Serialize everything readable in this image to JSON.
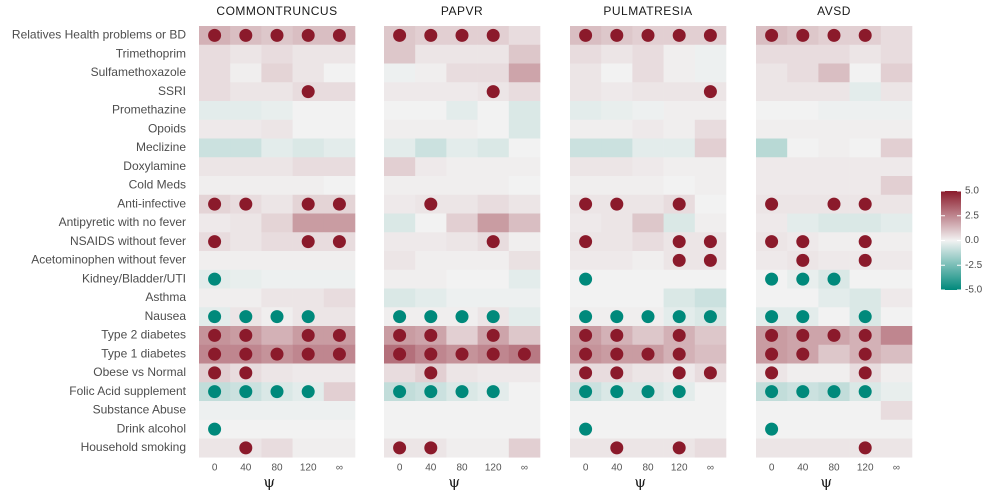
{
  "colorbar": {
    "lim": [
      -5,
      5
    ],
    "ticks": [
      {
        "value": 5,
        "label": "5.0"
      },
      {
        "value": 2.5,
        "label": "2.5"
      },
      {
        "value": 0,
        "label": "0.0"
      },
      {
        "value": -2.5,
        "label": "-2.5"
      },
      {
        "value": -5,
        "label": "-5.0"
      }
    ],
    "colors": {
      "low": "#00897b",
      "mid": "#f2f2f2",
      "high": "#8b1a2b"
    }
  },
  "dot_colors": {
    "positive": "#8b1a2b",
    "negative": "#00897b"
  },
  "chart_data": [
    {
      "type": "heatmap",
      "title": "COMMONTRUNCUS",
      "x": [
        "0",
        "40",
        "80",
        "120",
        "∞"
      ],
      "xlabel": "ψ",
      "y": [
        "Relatives Health problems or BD",
        "Trimethoprim",
        "Sulfamethoxazole",
        "SSRI",
        "Promethazine",
        "Opoids",
        "Meclizine",
        "Doxylamine",
        "Cold Meds",
        "Anti-infective",
        "Antipyretic with no fever",
        "NSAIDS without fever",
        "Acetominophen without fever",
        "Kidney/Bladder/UTI",
        "Asthma",
        "Nausea",
        "Type 2 diabetes",
        "Type 1 diabetes",
        "Obese vs Normal",
        "Folic Acid supplement",
        "Substance Abuse",
        "Drink alcohol",
        "Household smoking"
      ],
      "values": [
        [
          1.5,
          1.2,
          1.0,
          1.2,
          1.2
        ],
        [
          0.5,
          0.3,
          0.5,
          0.3,
          0.3
        ],
        [
          0.5,
          0.1,
          0.7,
          0.3,
          0.0
        ],
        [
          0.5,
          0.3,
          0.3,
          0.5,
          0.5
        ],
        [
          -0.3,
          -0.3,
          -0.2,
          0.0,
          0.0
        ],
        [
          0.2,
          0.2,
          0.3,
          0.0,
          0.0
        ],
        [
          -0.8,
          -0.8,
          -0.3,
          -0.5,
          -0.3
        ],
        [
          0.3,
          0.3,
          0.3,
          0.5,
          0.5
        ],
        [
          0.1,
          0.1,
          0.1,
          0.1,
          0.0
        ],
        [
          0.7,
          0.5,
          0.3,
          0.7,
          0.7
        ],
        [
          0.2,
          0.3,
          0.7,
          2.0,
          2.0
        ],
        [
          0.5,
          0.3,
          0.5,
          0.5,
          0.5
        ],
        [
          0.1,
          0.1,
          0.1,
          0.1,
          0.1
        ],
        [
          -0.3,
          -0.2,
          -0.1,
          -0.1,
          -0.1
        ],
        [
          0.1,
          0.1,
          0.3,
          0.3,
          0.5
        ],
        [
          -0.3,
          0.3,
          0.1,
          0.3,
          0.3
        ],
        [
          2.2,
          2.0,
          1.5,
          2.0,
          2.0
        ],
        [
          2.5,
          2.5,
          2.2,
          2.5,
          2.5
        ],
        [
          0.8,
          0.5,
          0.3,
          0.2,
          0.2
        ],
        [
          -1.0,
          -0.8,
          -0.5,
          -0.3,
          0.8
        ],
        [
          -0.1,
          -0.1,
          -0.1,
          -0.1,
          -0.1
        ],
        [
          0.0,
          0.0,
          0.0,
          0.0,
          0.0
        ],
        [
          0.3,
          0.3,
          0.5,
          0.1,
          0.1
        ]
      ],
      "signif": [
        [
          1,
          1,
          1,
          1,
          1
        ],
        [
          0,
          0,
          0,
          0,
          0
        ],
        [
          0,
          0,
          0,
          0,
          0
        ],
        [
          0,
          0,
          0,
          1,
          0
        ],
        [
          0,
          0,
          0,
          0,
          0
        ],
        [
          0,
          0,
          0,
          0,
          0
        ],
        [
          0,
          0,
          0,
          0,
          0
        ],
        [
          0,
          0,
          0,
          0,
          0
        ],
        [
          0,
          0,
          0,
          0,
          0
        ],
        [
          1,
          1,
          0,
          1,
          1
        ],
        [
          0,
          0,
          0,
          0,
          0
        ],
        [
          1,
          0,
          0,
          1,
          1
        ],
        [
          0,
          0,
          0,
          0,
          0
        ],
        [
          -1,
          0,
          0,
          0,
          0
        ],
        [
          0,
          0,
          0,
          0,
          0
        ],
        [
          -1,
          -1,
          -1,
          -1,
          0
        ],
        [
          1,
          1,
          0,
          1,
          1
        ],
        [
          1,
          1,
          1,
          1,
          1
        ],
        [
          1,
          1,
          0,
          0,
          0
        ],
        [
          -1,
          -1,
          -1,
          -1,
          0
        ],
        [
          0,
          0,
          0,
          0,
          0
        ],
        [
          -1,
          0,
          0,
          0,
          0
        ],
        [
          0,
          1,
          0,
          0,
          0
        ]
      ]
    },
    {
      "type": "heatmap",
      "title": "PAPVR",
      "x": [
        "0",
        "40",
        "80",
        "120",
        "∞"
      ],
      "xlabel": "ψ",
      "values": [
        [
          1.0,
          0.8,
          0.8,
          0.8,
          0.5
        ],
        [
          1.0,
          0.3,
          0.3,
          0.3,
          1.0
        ],
        [
          -0.1,
          0.1,
          0.5,
          0.5,
          1.8
        ],
        [
          0.2,
          0.2,
          0.2,
          0.3,
          0.5
        ],
        [
          0.0,
          0.0,
          -0.3,
          0.0,
          -0.5
        ],
        [
          0.1,
          0.1,
          0.1,
          0.0,
          -0.5
        ],
        [
          -0.3,
          -0.8,
          -0.3,
          -0.5,
          0.0
        ],
        [
          0.8,
          0.2,
          0.1,
          0.1,
          0.1
        ],
        [
          0.1,
          0.1,
          0.1,
          0.1,
          0.0
        ],
        [
          0.2,
          0.3,
          0.3,
          0.5,
          0.3
        ],
        [
          -0.5,
          0.0,
          0.8,
          2.0,
          1.2
        ],
        [
          0.2,
          0.2,
          0.3,
          0.5,
          0.1
        ],
        [
          0.3,
          0.1,
          0.1,
          0.1,
          0.4
        ],
        [
          0.1,
          0.1,
          0.0,
          0.0,
          -0.3
        ],
        [
          -0.5,
          -0.3,
          -0.1,
          -0.1,
          -0.1
        ],
        [
          0.1,
          0.1,
          0.1,
          0.3,
          -0.3
        ],
        [
          2.0,
          1.8,
          0.8,
          1.8,
          1.0
        ],
        [
          3.0,
          2.5,
          2.2,
          2.5,
          2.8
        ],
        [
          0.5,
          0.8,
          0.3,
          0.2,
          0.2
        ],
        [
          -1.0,
          -0.8,
          -0.5,
          -0.3,
          0.0
        ],
        [
          0.0,
          0.0,
          0.0,
          0.0,
          0.0
        ],
        [
          0.0,
          0.0,
          0.0,
          0.0,
          0.0
        ],
        [
          0.3,
          0.3,
          0.1,
          0.1,
          0.8
        ]
      ],
      "signif": [
        [
          1,
          1,
          1,
          1,
          0
        ],
        [
          0,
          0,
          0,
          0,
          0
        ],
        [
          0,
          0,
          0,
          0,
          0
        ],
        [
          0,
          0,
          0,
          1,
          0
        ],
        [
          0,
          0,
          0,
          0,
          0
        ],
        [
          0,
          0,
          0,
          0,
          0
        ],
        [
          0,
          0,
          0,
          0,
          0
        ],
        [
          0,
          0,
          0,
          0,
          0
        ],
        [
          0,
          0,
          0,
          0,
          0
        ],
        [
          0,
          1,
          0,
          0,
          0
        ],
        [
          0,
          0,
          0,
          0,
          0
        ],
        [
          0,
          0,
          0,
          1,
          0
        ],
        [
          0,
          0,
          0,
          0,
          0
        ],
        [
          0,
          0,
          0,
          0,
          0
        ],
        [
          0,
          0,
          0,
          0,
          0
        ],
        [
          -1,
          -1,
          -1,
          -1,
          0
        ],
        [
          1,
          1,
          0,
          1,
          0
        ],
        [
          1,
          1,
          1,
          1,
          1
        ],
        [
          0,
          1,
          0,
          0,
          0
        ],
        [
          -1,
          -1,
          -1,
          -1,
          0
        ],
        [
          0,
          0,
          0,
          0,
          0
        ],
        [
          0,
          0,
          0,
          0,
          0
        ],
        [
          1,
          1,
          0,
          0,
          0
        ]
      ]
    },
    {
      "type": "heatmap",
      "title": "PULMATRESIA",
      "x": [
        "0",
        "40",
        "80",
        "120",
        "∞"
      ],
      "xlabel": "ψ",
      "values": [
        [
          1.2,
          1.0,
          0.8,
          0.8,
          0.8
        ],
        [
          0.5,
          0.3,
          0.5,
          0.1,
          -0.1
        ],
        [
          0.3,
          0.0,
          0.5,
          0.1,
          -0.1
        ],
        [
          0.3,
          0.2,
          0.3,
          0.3,
          0.3
        ],
        [
          -0.3,
          -0.2,
          -0.1,
          0.1,
          0.1
        ],
        [
          0.1,
          0.1,
          0.2,
          0.1,
          0.5
        ],
        [
          -0.8,
          -0.8,
          -0.3,
          -0.3,
          0.8
        ],
        [
          0.3,
          0.3,
          0.2,
          0.1,
          0.1
        ],
        [
          0.1,
          0.1,
          0.1,
          0.0,
          0.1
        ],
        [
          0.3,
          0.3,
          0.3,
          0.5,
          0.0
        ],
        [
          0.2,
          0.3,
          1.0,
          -0.5,
          0.1
        ],
        [
          0.3,
          0.3,
          0.5,
          0.3,
          0.3
        ],
        [
          0.2,
          0.2,
          0.1,
          0.3,
          0.3
        ],
        [
          0.0,
          0.0,
          0.0,
          0.0,
          0.0
        ],
        [
          0.0,
          0.0,
          0.0,
          -0.5,
          -0.8
        ],
        [
          0.1,
          0.1,
          0.1,
          -0.3,
          -0.5
        ],
        [
          2.0,
          1.5,
          1.0,
          1.5,
          1.0
        ],
        [
          2.2,
          2.0,
          2.0,
          1.5,
          1.2
        ],
        [
          0.5,
          0.5,
          0.3,
          0.2,
          0.5
        ],
        [
          -0.8,
          -0.5,
          -0.5,
          -0.3,
          0.0
        ],
        [
          0.0,
          0.0,
          0.0,
          0.0,
          0.0
        ],
        [
          0.0,
          0.0,
          0.0,
          0.0,
          0.0
        ],
        [
          0.3,
          0.3,
          0.3,
          0.3,
          0.5
        ]
      ],
      "signif": [
        [
          1,
          1,
          1,
          1,
          1
        ],
        [
          0,
          0,
          0,
          0,
          0
        ],
        [
          0,
          0,
          0,
          0,
          0
        ],
        [
          0,
          0,
          0,
          0,
          1
        ],
        [
          0,
          0,
          0,
          0,
          0
        ],
        [
          0,
          0,
          0,
          0,
          0
        ],
        [
          0,
          0,
          0,
          0,
          0
        ],
        [
          0,
          0,
          0,
          0,
          0
        ],
        [
          0,
          0,
          0,
          0,
          0
        ],
        [
          1,
          1,
          0,
          1,
          0
        ],
        [
          0,
          0,
          0,
          0,
          0
        ],
        [
          1,
          0,
          0,
          1,
          1
        ],
        [
          0,
          0,
          0,
          1,
          1
        ],
        [
          -1,
          0,
          0,
          0,
          0
        ],
        [
          0,
          0,
          0,
          0,
          0
        ],
        [
          -1,
          -1,
          -1,
          -1,
          -1
        ],
        [
          1,
          1,
          0,
          1,
          0
        ],
        [
          1,
          1,
          1,
          1,
          0
        ],
        [
          1,
          1,
          0,
          1,
          1
        ],
        [
          -1,
          -1,
          -1,
          -1,
          0
        ],
        [
          0,
          0,
          0,
          0,
          0
        ],
        [
          -1,
          0,
          0,
          0,
          0
        ],
        [
          0,
          1,
          0,
          1,
          0
        ]
      ]
    },
    {
      "type": "heatmap",
      "title": "AVSD",
      "x": [
        "0",
        "40",
        "80",
        "120",
        "∞"
      ],
      "xlabel": "ψ",
      "values": [
        [
          1.2,
          1.0,
          0.8,
          0.8,
          0.5
        ],
        [
          0.5,
          0.5,
          0.5,
          0.3,
          0.5
        ],
        [
          0.3,
          0.5,
          1.2,
          0.0,
          0.8
        ],
        [
          0.3,
          0.3,
          0.3,
          -0.3,
          0.3
        ],
        [
          0.0,
          0.0,
          -0.1,
          -0.1,
          -0.1
        ],
        [
          0.1,
          0.1,
          0.1,
          0.1,
          0.1
        ],
        [
          -1.2,
          0.0,
          0.1,
          0.0,
          0.8
        ],
        [
          0.2,
          0.2,
          0.2,
          0.2,
          0.2
        ],
        [
          0.2,
          0.2,
          0.2,
          0.2,
          0.8
        ],
        [
          0.3,
          0.3,
          0.3,
          0.3,
          0.3
        ],
        [
          0.2,
          -0.3,
          -0.5,
          -0.5,
          -0.3
        ],
        [
          0.3,
          0.2,
          0.1,
          0.1,
          0.1
        ],
        [
          0.2,
          0.3,
          0.2,
          0.2,
          0.2
        ],
        [
          0.0,
          -0.2,
          -0.5,
          0.0,
          0.0
        ],
        [
          0.0,
          0.0,
          -0.3,
          -0.5,
          0.2
        ],
        [
          -0.3,
          -0.3,
          0.0,
          -0.5,
          0.0
        ],
        [
          2.0,
          1.8,
          1.8,
          1.5,
          2.5
        ],
        [
          2.0,
          1.8,
          1.0,
          1.5,
          1.2
        ],
        [
          0.3,
          0.1,
          0.1,
          0.5,
          0.1
        ],
        [
          -1.0,
          -0.8,
          -1.0,
          -0.5,
          -0.2
        ],
        [
          0.0,
          0.0,
          0.0,
          0.0,
          0.5
        ],
        [
          0.0,
          0.0,
          0.0,
          0.0,
          0.0
        ],
        [
          0.3,
          0.3,
          0.3,
          0.3,
          0.3
        ]
      ],
      "signif": [
        [
          1,
          1,
          1,
          1,
          0
        ],
        [
          0,
          0,
          0,
          0,
          0
        ],
        [
          0,
          0,
          0,
          0,
          0
        ],
        [
          0,
          0,
          0,
          0,
          0
        ],
        [
          0,
          0,
          0,
          0,
          0
        ],
        [
          0,
          0,
          0,
          0,
          0
        ],
        [
          0,
          0,
          0,
          0,
          0
        ],
        [
          0,
          0,
          0,
          0,
          0
        ],
        [
          0,
          0,
          0,
          0,
          0
        ],
        [
          1,
          0,
          1,
          1,
          0
        ],
        [
          0,
          0,
          0,
          0,
          0
        ],
        [
          1,
          1,
          0,
          1,
          0
        ],
        [
          0,
          1,
          0,
          1,
          0
        ],
        [
          -1,
          -1,
          -1,
          0,
          0
        ],
        [
          0,
          0,
          0,
          0,
          0
        ],
        [
          -1,
          -1,
          0,
          -1,
          0
        ],
        [
          1,
          1,
          1,
          1,
          0
        ],
        [
          1,
          1,
          0,
          1,
          0
        ],
        [
          1,
          0,
          0,
          1,
          0
        ],
        [
          -1,
          -1,
          -1,
          -1,
          0
        ],
        [
          0,
          0,
          0,
          0,
          0
        ],
        [
          -1,
          0,
          0,
          0,
          0
        ],
        [
          0,
          0,
          0,
          1,
          0
        ]
      ]
    }
  ]
}
